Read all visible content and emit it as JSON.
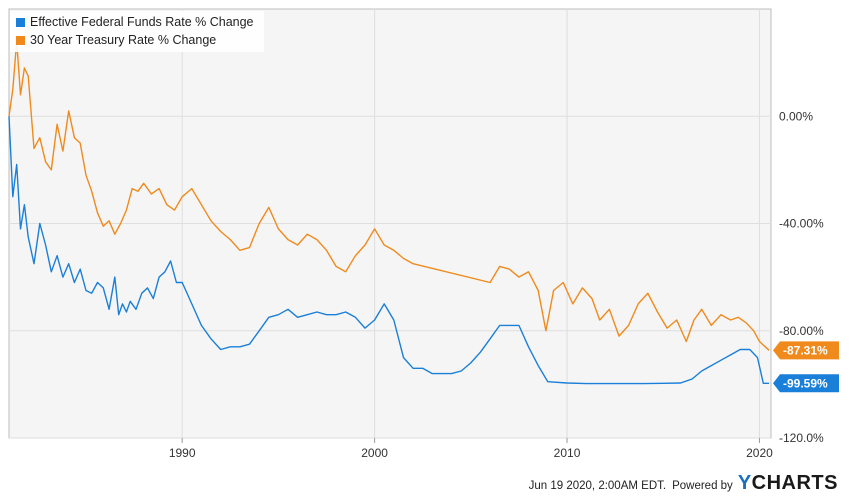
{
  "chart_data": {
    "type": "line",
    "title": "",
    "xlabel": "",
    "ylabel": "",
    "xlim": [
      1981.0,
      2020.6
    ],
    "ylim": [
      -120,
      40
    ],
    "x_ticks": [
      {
        "label": "1990",
        "value": 1990
      },
      {
        "label": "2000",
        "value": 2000
      },
      {
        "label": "2010",
        "value": 2010
      },
      {
        "label": "2020",
        "value": 2020
      }
    ],
    "y_ticks": [
      {
        "label": "0.00%",
        "value": 0
      },
      {
        "label": "-40.00%",
        "value": -40
      },
      {
        "label": "-80.00%",
        "value": -80
      },
      {
        "label": "-120.0%",
        "value": -120
      }
    ],
    "grid": true,
    "legend_position": "top-left",
    "series": [
      {
        "name": "Effective Federal Funds Rate % Change",
        "color": "#1a7fd9",
        "end_label": "-99.59%",
        "x": [
          1981.0,
          1981.2,
          1981.4,
          1981.6,
          1981.8,
          1982.0,
          1982.3,
          1982.6,
          1982.9,
          1983.2,
          1983.5,
          1983.8,
          1984.1,
          1984.4,
          1984.7,
          1985.0,
          1985.3,
          1985.6,
          1985.9,
          1986.2,
          1986.5,
          1986.7,
          1986.9,
          1987.1,
          1987.3,
          1987.6,
          1987.9,
          1988.2,
          1988.5,
          1988.8,
          1989.1,
          1989.4,
          1989.7,
          1990.0,
          1990.5,
          1991.0,
          1991.5,
          1992.0,
          1992.5,
          1993.0,
          1993.5,
          1994.0,
          1994.5,
          1995.0,
          1995.5,
          1996.0,
          1996.5,
          1997.0,
          1997.5,
          1998.0,
          1998.5,
          1999.0,
          1999.5,
          2000.0,
          2000.5,
          2001.0,
          2001.5,
          2002.0,
          2002.5,
          2003.0,
          2003.5,
          2004.0,
          2004.5,
          2005.0,
          2005.5,
          2006.0,
          2006.5,
          2007.0,
          2007.5,
          2008.0,
          2008.5,
          2009.0,
          2010.0,
          2011.0,
          2012.0,
          2013.0,
          2014.0,
          2015.0,
          2015.9,
          2016.5,
          2017.0,
          2017.5,
          2018.0,
          2018.5,
          2019.0,
          2019.5,
          2019.9,
          2020.2,
          2020.5
        ],
        "values": [
          0,
          -30,
          -18,
          -42,
          -33,
          -45,
          -55,
          -40,
          -48,
          -58,
          -52,
          -60,
          -55,
          -62,
          -57,
          -65,
          -66,
          -62,
          -64,
          -72,
          -60,
          -74,
          -70,
          -73,
          -69,
          -72,
          -66,
          -64,
          -68,
          -60,
          -58,
          -54,
          -62,
          -62,
          -70,
          -78,
          -83,
          -87,
          -86,
          -86,
          -85,
          -80,
          -75,
          -74,
          -72,
          -75,
          -74,
          -73,
          -74,
          -74,
          -73,
          -75,
          -79,
          -76,
          -70,
          -76,
          -90,
          -94,
          -94,
          -96,
          -96,
          -96,
          -95,
          -92,
          -88,
          -83,
          -78,
          -78,
          -78,
          -86,
          -93,
          -99,
          -99.5,
          -99.7,
          -99.7,
          -99.7,
          -99.7,
          -99.6,
          -99.5,
          -98,
          -95,
          -93,
          -91,
          -89,
          -87,
          -87,
          -90,
          -99.6,
          -99.59
        ]
      },
      {
        "name": "30 Year Treasury Rate % Change",
        "color": "#f08a1c",
        "end_label": "-87.31%",
        "x": [
          1981.0,
          1981.2,
          1981.4,
          1981.6,
          1981.8,
          1982.0,
          1982.3,
          1982.6,
          1982.9,
          1983.2,
          1983.5,
          1983.8,
          1984.1,
          1984.4,
          1984.7,
          1985.0,
          1985.3,
          1985.6,
          1985.9,
          1986.2,
          1986.5,
          1986.8,
          1987.1,
          1987.4,
          1987.7,
          1988.0,
          1988.4,
          1988.8,
          1989.2,
          1989.6,
          1990.0,
          1990.5,
          1991.0,
          1991.5,
          1992.0,
          1992.5,
          1993.0,
          1993.5,
          1994.0,
          1994.5,
          1995.0,
          1995.5,
          1996.0,
          1996.5,
          1997.0,
          1997.5,
          1998.0,
          1998.5,
          1999.0,
          1999.5,
          2000.0,
          2000.5,
          2001.0,
          2001.5,
          2002.0,
          2006.0,
          2006.5,
          2007.0,
          2007.5,
          2008.0,
          2008.5,
          2008.9,
          2009.3,
          2009.8,
          2010.3,
          2010.8,
          2011.3,
          2011.7,
          2012.2,
          2012.7,
          2013.2,
          2013.7,
          2014.2,
          2014.7,
          2015.2,
          2015.7,
          2016.2,
          2016.6,
          2017.0,
          2017.5,
          2018.0,
          2018.5,
          2018.9,
          2019.3,
          2019.7,
          2020.0,
          2020.3,
          2020.5
        ],
        "values": [
          0,
          10,
          28,
          8,
          18,
          15,
          -12,
          -8,
          -17,
          -20,
          -3,
          -13,
          2,
          -8,
          -10,
          -22,
          -28,
          -36,
          -41,
          -39,
          -44,
          -40,
          -35,
          -27,
          -28,
          -25,
          -29,
          -27,
          -33,
          -35,
          -30,
          -27,
          -33,
          -39,
          -43,
          -46,
          -50,
          -49,
          -40,
          -34,
          -42,
          -46,
          -48,
          -44,
          -46,
          -50,
          -56,
          -58,
          -52,
          -48,
          -42,
          -48,
          -50,
          -53,
          -55,
          -62,
          -56,
          -57,
          -60,
          -58,
          -65,
          -80,
          -65,
          -62,
          -70,
          -64,
          -68,
          -76,
          -72,
          -82,
          -78,
          -70,
          -66,
          -73,
          -79,
          -76,
          -84,
          -76,
          -72,
          -78,
          -74,
          -76,
          -75,
          -77,
          -80,
          -84,
          -86,
          -87.31
        ]
      }
    ]
  },
  "footer": {
    "timestamp": "Jun 19 2020, 2:00AM EDT.",
    "powered": "Powered by",
    "logo_y": "Y",
    "logo_rest": "CHARTS"
  }
}
